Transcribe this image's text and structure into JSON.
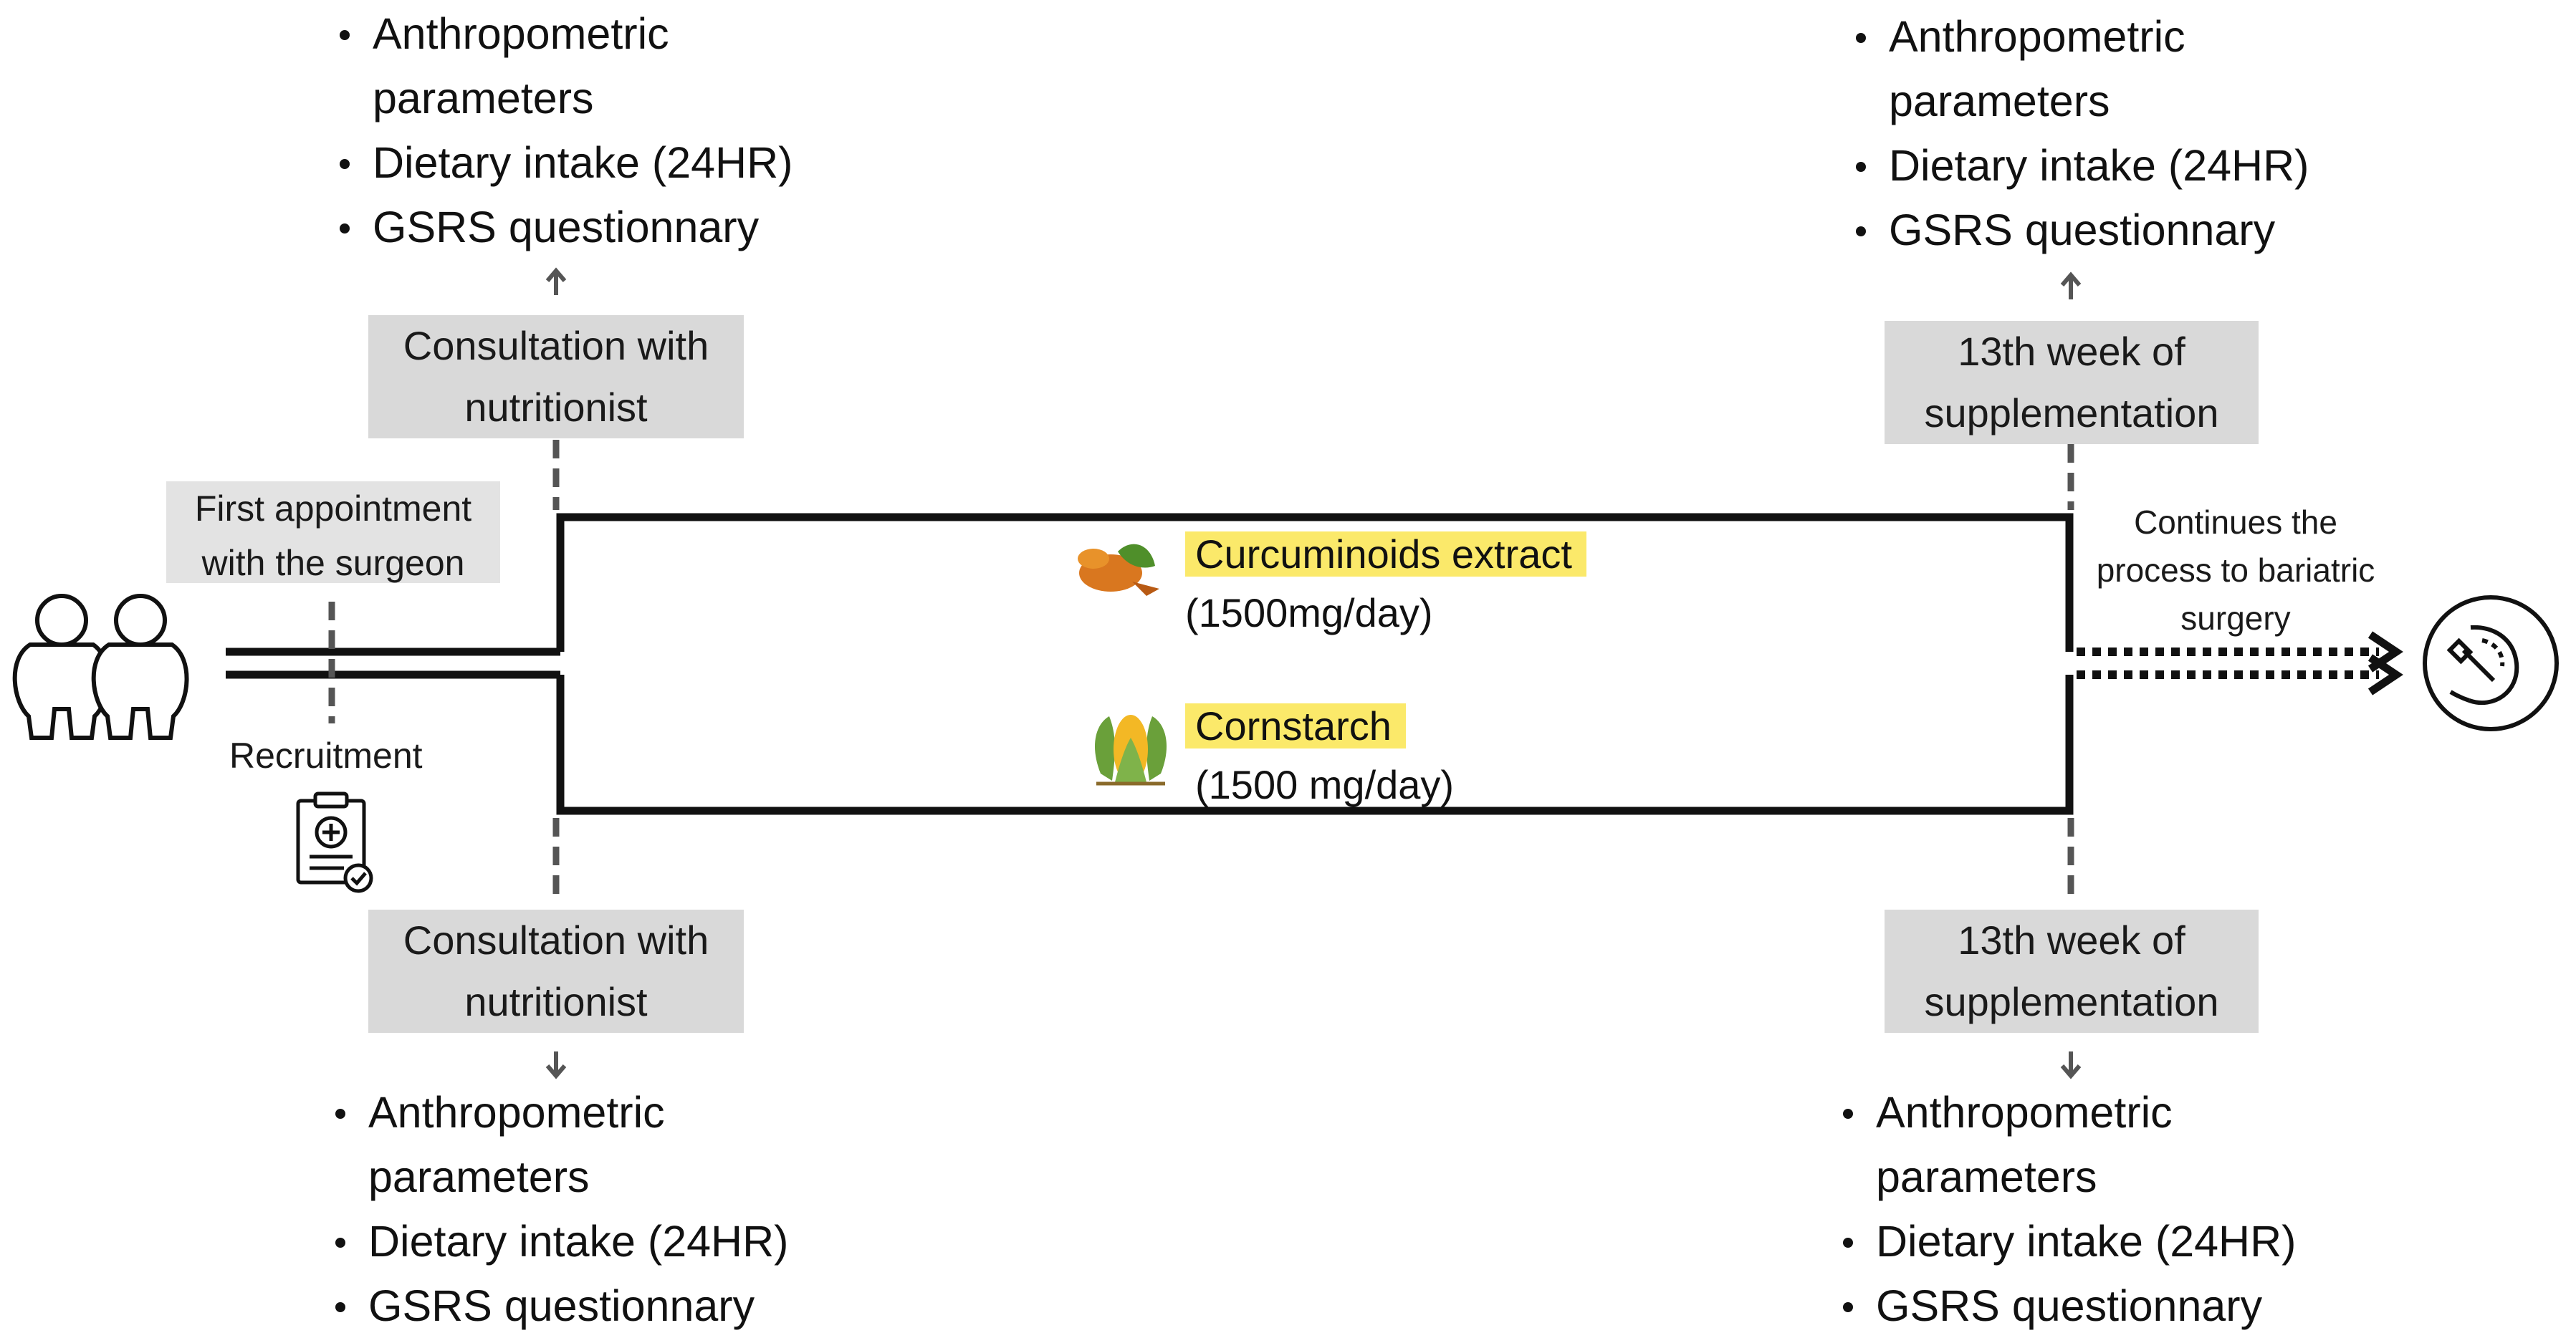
{
  "pre_left_top": {
    "items": [
      "Anthropometric parameters",
      "Dietary intake (24HR)",
      "GSRS questionnary"
    ],
    "item0_lines": [
      "Anthropometric",
      "parameters"
    ]
  },
  "pre_left_bottom": {
    "item0_lines": [
      "Anthropometric",
      "parameters"
    ],
    "items": [
      "Anthropometric parameters",
      "Dietary intake (24HR)",
      "GSRS questionnary"
    ]
  },
  "post_right_top": {
    "item0_lines": [
      "Anthropometric",
      "parameters"
    ],
    "items": [
      "Anthropometric parameters",
      "Dietary intake (24HR)",
      "GSRS questionnary"
    ]
  },
  "post_right_bottom": {
    "item0_lines": [
      "Anthropometric",
      "parameters"
    ],
    "items": [
      "Anthropometric parameters",
      "Dietary intake (24HR)",
      "GSRS questionnary"
    ]
  },
  "boxes": {
    "consult_top": [
      "Consultation with",
      "nutritionist"
    ],
    "consult_bottom": [
      "Consultation with",
      "nutritionist"
    ],
    "week13_top": [
      "13th week of",
      "supplementation"
    ],
    "week13_bottom": [
      "13th week of",
      "supplementation"
    ],
    "first_appointment": [
      "First appointment",
      "with the surgeon"
    ]
  },
  "labels": {
    "recruitment": "Recruitment",
    "continues": [
      "Continues the",
      "process to bariatric",
      "surgery"
    ]
  },
  "arms": {
    "curcumin_name": "Curcuminoids extract",
    "curcumin_dose": "(1500mg/day)",
    "cornstarch_name": "Cornstarch",
    "cornstarch_dose": "(1500 mg/day)"
  },
  "icons": [
    "obese-couple-icon",
    "clipboard-medical-icon",
    "turmeric-icon",
    "corn-icon",
    "stomach-surgery-icon"
  ],
  "colors": {
    "highlight": "#fbe96a",
    "box_fill": "#d9d9d9",
    "line": "#111111",
    "dash": "#555555"
  }
}
